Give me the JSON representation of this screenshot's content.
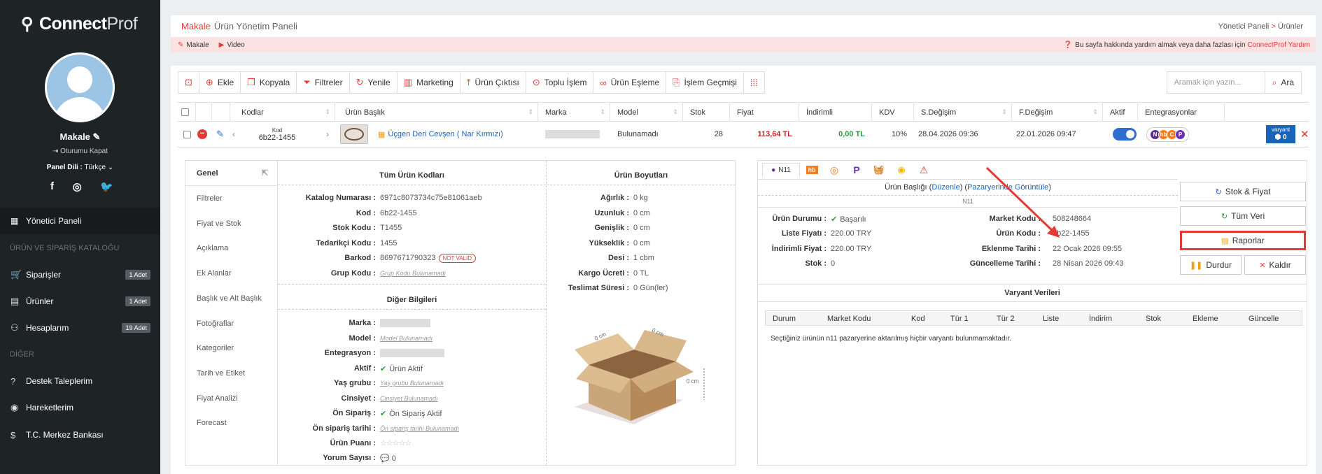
{
  "sidebar": {
    "logo_bold": "Connect",
    "logo_light": "Prof",
    "user_name": "Makale",
    "logout": "Oturumu Kapat",
    "lang_label": "Panel Dili :",
    "lang_value": "Türkçe",
    "social": [
      "f",
      "◎",
      "🐦"
    ],
    "active_item": "Yönetici Paneli",
    "section1": "ÜRÜN VE SİPARİŞ KATALOĞU",
    "items1": [
      {
        "label": "Siparişler",
        "badge": "1 Adet",
        "icon": "cart-icon"
      },
      {
        "label": "Ürünler",
        "badge": "1 Adet",
        "icon": "products-icon"
      },
      {
        "label": "Hesaplarım",
        "badge": "19 Adet",
        "icon": "users-icon"
      }
    ],
    "section2": "DİĞER",
    "items2": [
      {
        "label": "Destek Taleplerim",
        "icon": "support-icon"
      },
      {
        "label": "Hareketlerim",
        "icon": "activity-icon"
      },
      {
        "label": "T.C. Merkez Bankası",
        "icon": "bank-icon"
      }
    ]
  },
  "header": {
    "title": "Makale",
    "subtitle": "Ürün Yönetim Paneli",
    "breadcrumb_1": "Yönetici Paneli",
    "breadcrumb_sep": ">",
    "breadcrumb_2": "Ürünler",
    "link_1": "Makale",
    "link_2": "Video",
    "help_text": "Bu sayfa hakkında yardım almak veya daha fazlası için",
    "help_link": "ConnectProf Yardım"
  },
  "toolbar": {
    "buttons": [
      "Ekle",
      "Kopyala",
      "Filtreler",
      "Yenile",
      "Marketing",
      "Ürün Çıktısı",
      "Toplu İşlem",
      "Ürün Eşleme",
      "İşlem Geçmişi"
    ],
    "search_placeholder": "Aramak için yazın...",
    "search_button": "Ara"
  },
  "table": {
    "columns": [
      "Kodlar",
      "Ürün Başlık",
      "Marka",
      "Model",
      "Stok",
      "Fiyat",
      "İndirimli",
      "KDV",
      "S.Değişim",
      "F.Değişim",
      "Aktif",
      "Entegrasyonlar"
    ],
    "row": {
      "code_label": "Kod",
      "code": "6b22-1455",
      "title": "Üçgen Deri Cevşen ( Nar Kırmızı)",
      "model": "Bulunamadı",
      "stock": "28",
      "price": "113,64 TL",
      "discounted": "0,00 TL",
      "kdv": "10%",
      "s_change": "28.04.2026 09:36",
      "f_change": "22.01.2026 09:47",
      "variant_label": "varyant",
      "variant_count": "0",
      "integrations": [
        "N",
        "hb",
        "C",
        "P"
      ]
    }
  },
  "detail": {
    "tabs": [
      "Genel",
      "Filtreler",
      "Fiyat ve Stok",
      "Açıklama",
      "Ek Alanlar",
      "Başlık ve Alt Başlık",
      "Fotoğraflar",
      "Kategoriler",
      "Tarih ve Etiket",
      "Fiyat Analizi",
      "Forecast"
    ],
    "codes_header": "Tüm Ürün Kodları",
    "codes": [
      {
        "label": "Katalog Numarası :",
        "value": "6971c8073734c75e81061aeb"
      },
      {
        "label": "Kod :",
        "value": "6b22-1455"
      },
      {
        "label": "Stok Kodu :",
        "value": "T1455"
      },
      {
        "label": "Tedarikçi Kodu :",
        "value": "1455"
      },
      {
        "label": "Barkod :",
        "value": "8697671790323"
      },
      {
        "label": "Grup Kodu :",
        "value": "Grup Kodu Bulunamadı"
      }
    ],
    "not_valid": "NOT VALID",
    "other_header": "Diğer Bilgileri",
    "other": [
      {
        "label": "Marka :",
        "value": ""
      },
      {
        "label": "Model :",
        "value": "Model Bulunamadı"
      },
      {
        "label": "Entegrasyon :",
        "value": ""
      },
      {
        "label": "Aktif :",
        "value": "Ürün Aktif"
      },
      {
        "label": "Yaş grubu :",
        "value": "Yaş grubu Bulunamadı"
      },
      {
        "label": "Cinsiyet :",
        "value": "Cinsiyet Bulunamadı"
      },
      {
        "label": "Ön Sipariş :",
        "value": "Ön Sipariş Aktif"
      },
      {
        "label": "Ön sipariş tarihi :",
        "value": "Ön sipariş tarihi Bulunamadı"
      },
      {
        "label": "Ürün Puanı :",
        "value": "☆☆☆☆☆"
      },
      {
        "label": "Yorum Sayısı :",
        "value": "0"
      }
    ],
    "dims_header": "Ürün Boyutları",
    "dims": [
      {
        "label": "Ağırlık :",
        "value": "0 kg"
      },
      {
        "label": "Uzunluk :",
        "value": "0 cm"
      },
      {
        "label": "Genişlik :",
        "value": "0 cm"
      },
      {
        "label": "Yükseklik :",
        "value": "0 cm"
      },
      {
        "label": "Desi :",
        "value": "1 cbm"
      },
      {
        "label": "Kargo Ücreti :",
        "value": "0 TL"
      },
      {
        "label": "Teslimat Süresi :",
        "value": "0 Gün(ler)"
      }
    ],
    "box_dims": [
      "0 cm",
      "0 cm",
      "0 cm"
    ]
  },
  "marketplace": {
    "active_tab": "N11",
    "title_label": "Ürün Başlığı",
    "edit_link": "Düzenle",
    "view_link": "Pazaryerinde Görüntüle",
    "sub_name": "N11",
    "left": [
      {
        "label": "Ürün Durumu :",
        "value": "Başarılı"
      },
      {
        "label": "Liste Fiyatı :",
        "value": "220.00 TRY"
      },
      {
        "label": "İndirimli Fiyat :",
        "value": "220.00 TRY"
      },
      {
        "label": "Stok :",
        "value": "0"
      }
    ],
    "right": [
      {
        "label": "Market Kodu :",
        "value": "508248664"
      },
      {
        "label": "Ürün Kodu :",
        "value": "6b22-1455"
      },
      {
        "label": "Eklenme Tarihi :",
        "value": "22 Ocak 2026 09:55"
      },
      {
        "label": "Güncelleme Tarihi :",
        "value": "28 Nisan 2026 09:43"
      }
    ],
    "buttons": [
      "Stok & Fiyat",
      "Tüm Veri",
      "Raporlar",
      "Durdur",
      "Kaldır"
    ],
    "variants_header": "Varyant Verileri",
    "variant_columns": [
      "Durum",
      "Market Kodu",
      "Kod",
      "Tür 1",
      "Tür 2",
      "Liste",
      "İndirim",
      "Stok",
      "Ekleme",
      "Güncelle"
    ],
    "empty_text": "Seçtiğiniz ürünün n11 pazaryerine aktarılmış hiçbir varyantı bulunmamaktadır."
  },
  "colors": {
    "accent": "#e53935",
    "sidebar": "#1e2326",
    "toggle": "#2f6ecf",
    "price": "#c62828",
    "discount": "#2e9c43"
  }
}
